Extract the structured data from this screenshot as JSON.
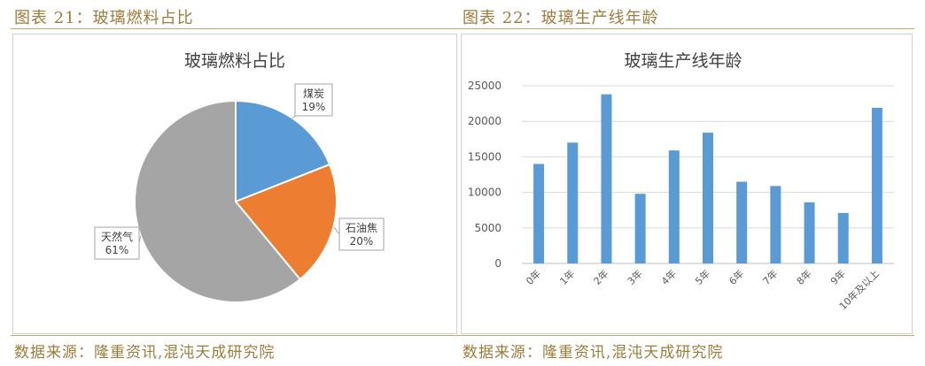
{
  "left": {
    "figure_title": "图表 21：玻璃燃料占比",
    "source": "数据来源：隆重资讯,混沌天成研究院"
  },
  "right": {
    "figure_title": "图表 22：玻璃生产线年龄",
    "source": "数据来源：隆重资讯,混沌天成研究院"
  },
  "chart_data": [
    {
      "type": "pie",
      "title": "玻璃燃料占比",
      "slices": [
        {
          "label": "煤炭",
          "value": 19,
          "display": "19%",
          "color": "#5b9bd5"
        },
        {
          "label": "石油焦",
          "value": 20,
          "display": "20%",
          "color": "#ed7d31"
        },
        {
          "label": "天然气",
          "value": 61,
          "display": "61%",
          "color": "#a5a5a5"
        }
      ]
    },
    {
      "type": "bar",
      "title": "玻璃生产线年龄",
      "categories": [
        "0年",
        "1年",
        "2年",
        "3年",
        "4年",
        "5年",
        "6年",
        "7年",
        "8年",
        "9年",
        "10年及以上"
      ],
      "values": [
        14000,
        17000,
        23800,
        9800,
        15900,
        18400,
        11500,
        10900,
        8600,
        7100,
        21900
      ],
      "ylim": [
        0,
        25000
      ],
      "yticks": [
        0,
        5000,
        10000,
        15000,
        20000,
        25000
      ],
      "grid": true,
      "bar_color": "#5b9bd5"
    }
  ]
}
